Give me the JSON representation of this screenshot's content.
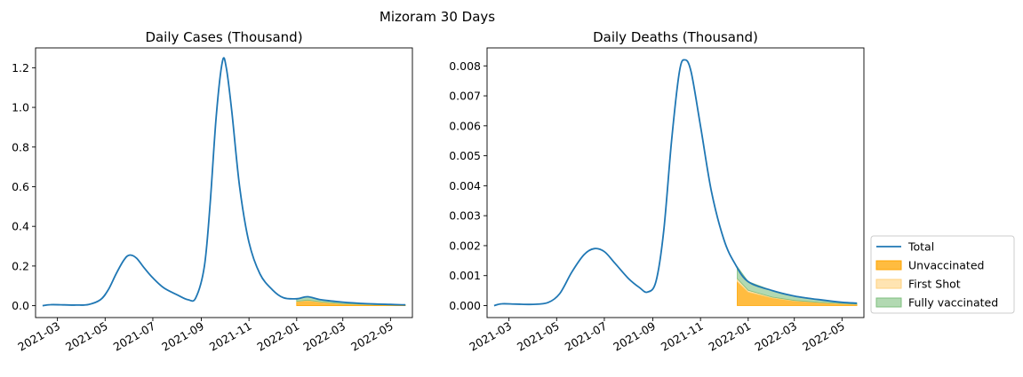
{
  "figure": {
    "title": "Mizoram 30 Days"
  },
  "colors": {
    "total": "#1f77b4",
    "unvaccinated": "#ffa500",
    "first_shot": "#ffd27f",
    "fully_vaccinated": "#7fbf7f"
  },
  "legend": {
    "placement": "right-bottom",
    "entries": [
      {
        "key": "total",
        "label": "Total"
      },
      {
        "key": "unvaccinated",
        "label": "Unvaccinated"
      },
      {
        "key": "first_shot",
        "label": "First Shot"
      },
      {
        "key": "fully_vaccinated",
        "label": "Fully vaccinated"
      }
    ]
  },
  "chart_data": [
    {
      "type": "area",
      "title": "Daily Cases (Thousand)",
      "xlabel": "",
      "ylabel": "",
      "xlim": [
        "2021-02-01",
        "2022-05-29"
      ],
      "ylim": [
        -0.06,
        1.3
      ],
      "xticks": [
        "2021-03",
        "2021-05",
        "2021-07",
        "2021-09",
        "2021-11",
        "2022-01",
        "2022-03",
        "2022-05"
      ],
      "yticks": [
        0.0,
        0.2,
        0.4,
        0.6,
        0.8,
        1.0,
        1.2
      ],
      "ytick_labels": [
        "0.0",
        "0.2",
        "0.4",
        "0.6",
        "0.8",
        "1.0",
        "1.2"
      ],
      "total": [
        [
          "2021-02-10",
          0.0
        ],
        [
          "2021-02-20",
          0.005
        ],
        [
          "2021-03-10",
          0.004
        ],
        [
          "2021-03-25",
          0.003
        ],
        [
          "2021-04-10",
          0.006
        ],
        [
          "2021-04-25",
          0.03
        ],
        [
          "2021-05-05",
          0.08
        ],
        [
          "2021-05-15",
          0.16
        ],
        [
          "2021-05-25",
          0.23
        ],
        [
          "2021-06-01",
          0.255
        ],
        [
          "2021-06-10",
          0.24
        ],
        [
          "2021-06-20",
          0.19
        ],
        [
          "2021-07-01",
          0.14
        ],
        [
          "2021-07-15",
          0.09
        ],
        [
          "2021-08-01",
          0.055
        ],
        [
          "2021-08-15",
          0.03
        ],
        [
          "2021-08-25",
          0.04
        ],
        [
          "2021-09-05",
          0.2
        ],
        [
          "2021-09-12",
          0.5
        ],
        [
          "2021-09-20",
          0.95
        ],
        [
          "2021-09-28",
          1.23
        ],
        [
          "2021-10-03",
          1.2
        ],
        [
          "2021-10-10",
          0.98
        ],
        [
          "2021-10-20",
          0.6
        ],
        [
          "2021-11-01",
          0.32
        ],
        [
          "2021-11-15",
          0.16
        ],
        [
          "2021-12-01",
          0.08
        ],
        [
          "2021-12-15",
          0.04
        ],
        [
          "2022-01-01",
          0.035
        ],
        [
          "2022-01-15",
          0.045
        ],
        [
          "2022-02-01",
          0.03
        ],
        [
          "2022-03-01",
          0.018
        ],
        [
          "2022-04-01",
          0.01
        ],
        [
          "2022-05-01",
          0.006
        ],
        [
          "2022-05-20",
          0.004
        ]
      ],
      "vaccinated_from": "2022-01-01",
      "stack": {
        "dates": [
          "2022-01-01",
          "2022-01-15",
          "2022-02-01",
          "2022-03-01",
          "2022-04-01",
          "2022-05-01",
          "2022-05-20"
        ],
        "unvaccinated": [
          0.02,
          0.025,
          0.017,
          0.009,
          0.005,
          0.003,
          0.002
        ],
        "first_shot": [
          0.002,
          0.003,
          0.002,
          0.001,
          0.001,
          0.0005,
          0.0004
        ],
        "fully_vaccinated": [
          0.013,
          0.017,
          0.011,
          0.008,
          0.004,
          0.0025,
          0.0016
        ]
      }
    },
    {
      "type": "area",
      "title": "Daily Deaths (Thousand)",
      "xlabel": "",
      "ylabel": "",
      "xlim": [
        "2021-02-01",
        "2022-05-29"
      ],
      "ylim": [
        -0.0004,
        0.0086
      ],
      "xticks": [
        "2021-03",
        "2021-05",
        "2021-07",
        "2021-09",
        "2021-11",
        "2022-01",
        "2022-03",
        "2022-05"
      ],
      "yticks": [
        0.0,
        0.001,
        0.002,
        0.003,
        0.004,
        0.005,
        0.006,
        0.007,
        0.008
      ],
      "ytick_labels": [
        "0.000",
        "0.001",
        "0.002",
        "0.003",
        "0.004",
        "0.005",
        "0.006",
        "0.007",
        "0.008"
      ],
      "total": [
        [
          "2021-02-10",
          0.0
        ],
        [
          "2021-02-20",
          6e-05
        ],
        [
          "2021-03-10",
          5e-05
        ],
        [
          "2021-04-01",
          4e-05
        ],
        [
          "2021-04-20",
          0.0001
        ],
        [
          "2021-05-05",
          0.0004
        ],
        [
          "2021-05-20",
          0.0011
        ],
        [
          "2021-06-05",
          0.0017
        ],
        [
          "2021-06-18",
          0.0019
        ],
        [
          "2021-07-01",
          0.0018
        ],
        [
          "2021-07-15",
          0.0014
        ],
        [
          "2021-08-01",
          0.0009
        ],
        [
          "2021-08-15",
          0.0006
        ],
        [
          "2021-08-25",
          0.00045
        ],
        [
          "2021-09-05",
          0.0008
        ],
        [
          "2021-09-15",
          0.0025
        ],
        [
          "2021-09-25",
          0.0055
        ],
        [
          "2021-10-05",
          0.0078
        ],
        [
          "2021-10-12",
          0.0082
        ],
        [
          "2021-10-20",
          0.0078
        ],
        [
          "2021-11-01",
          0.006
        ],
        [
          "2021-11-15",
          0.0038
        ],
        [
          "2021-12-01",
          0.0022
        ],
        [
          "2021-12-15",
          0.0014
        ],
        [
          "2022-01-01",
          0.0008
        ],
        [
          "2022-02-01",
          0.0005
        ],
        [
          "2022-03-01",
          0.00032
        ],
        [
          "2022-04-01",
          0.0002
        ],
        [
          "2022-05-01",
          0.00011
        ],
        [
          "2022-05-20",
          8e-05
        ]
      ],
      "vaccinated_from": "2021-12-18",
      "stack": {
        "dates": [
          "2021-12-18",
          "2022-01-01",
          "2022-02-01",
          "2022-03-01",
          "2022-04-01",
          "2022-05-01",
          "2022-05-20"
        ],
        "unvaccinated": [
          0.0008,
          0.00045,
          0.00025,
          0.00015,
          0.0001,
          6e-05,
          4e-05
        ],
        "first_shot": [
          0.0001,
          6e-05,
          3e-05,
          2e-05,
          1e-05,
          1e-05,
          1e-05
        ],
        "fully_vaccinated": [
          0.0004,
          0.00029,
          0.00022,
          0.00015,
          9e-05,
          4e-05,
          3e-05
        ]
      }
    }
  ]
}
